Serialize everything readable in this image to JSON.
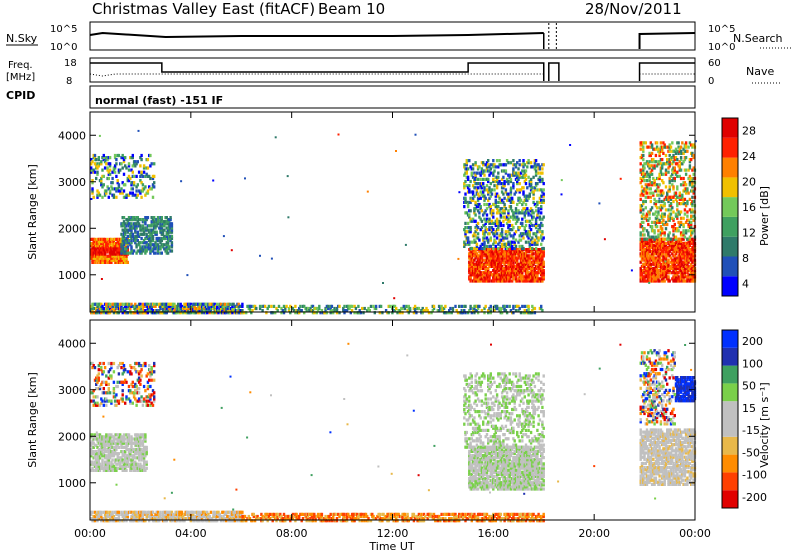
{
  "header": {
    "station": "Christmas Valley East (fitACF)",
    "beam": "Beam 10",
    "date": "28/Nov/2011"
  },
  "strips": {
    "nsky_label": "N.Sky",
    "nsearch_label": "N.Search",
    "nsky_ticks": [
      "10^5",
      "10^0"
    ],
    "freq_label_1": "Freq.",
    "freq_label_2": "[MHz]",
    "freq_ticks": [
      "18",
      "8"
    ],
    "nave_label": "Nave",
    "nave_ticks": [
      "60",
      "0"
    ],
    "cpid_label": "CPID",
    "cpid_text": "normal (fast) -151 IF"
  },
  "colors": {
    "power": [
      "#0000ff",
      "#2050b8",
      "#2f7a6a",
      "#3fa060",
      "#73c95a",
      "#f0c000",
      "#ff8000",
      "#ff2000",
      "#e00000"
    ],
    "velocity": [
      "#e00000",
      "#ff4000",
      "#ff8c00",
      "#e8b84a",
      "#c0c0c0",
      "#c0c0c0",
      "#7ad04a",
      "#3fa060",
      "#2030b0",
      "#0030ff"
    ]
  },
  "chart_data": [
    {
      "type": "heatmap",
      "name_panel": "power",
      "ylabel": "Slant Range [km]",
      "yticks": [
        "1000",
        "2000",
        "3000",
        "4000"
      ],
      "ylim": [
        200,
        4500
      ],
      "xlim_hours": [
        0,
        24
      ],
      "colorbar_label": "Power [dB]",
      "colorbar_ticks": [
        "4",
        "8",
        "12",
        "16",
        "20",
        "24",
        "28"
      ]
    },
    {
      "type": "heatmap",
      "name_panel": "velocity",
      "ylabel": "Slant Range [km]",
      "yticks": [
        "1000",
        "2000",
        "3000",
        "4000"
      ],
      "ylim": [
        200,
        4500
      ],
      "xlim_hours": [
        0,
        24
      ],
      "colorbar_label": "Velocity [m s⁻¹]",
      "colorbar_ticks": [
        "200",
        "100",
        "50",
        "15",
        "-15",
        "-50",
        "-100",
        "-200"
      ],
      "xlabel": "Time UT",
      "xticks": [
        "00:00",
        "04:00",
        "08:00",
        "12:00",
        "16:00",
        "20:00",
        "00:00"
      ]
    }
  ]
}
